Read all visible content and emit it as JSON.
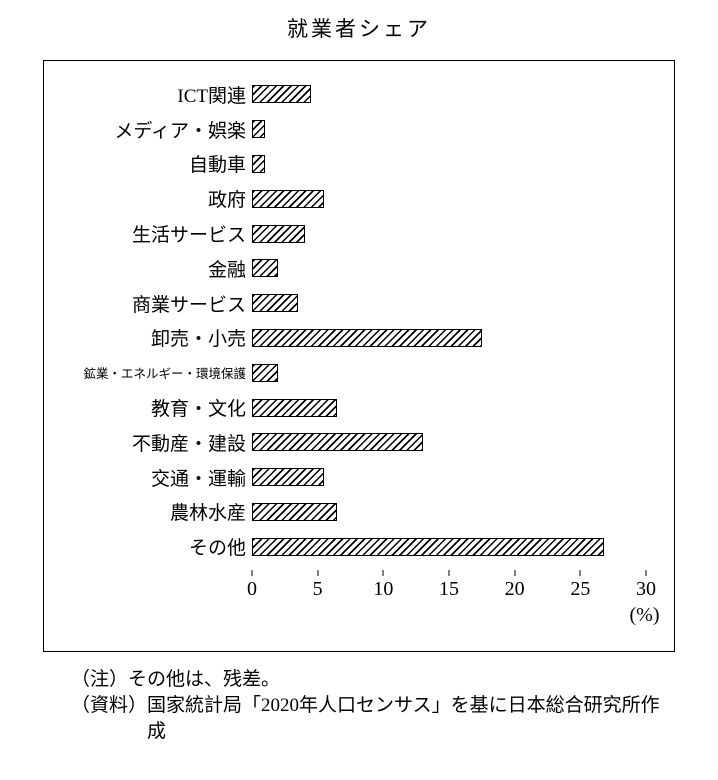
{
  "title": "就業者シェア",
  "chart_data": {
    "type": "bar",
    "orientation": "horizontal",
    "title": "就業者シェア",
    "categories": [
      "ICT関連",
      "メディア・娯楽",
      "自動車",
      "政府",
      "生活サービス",
      "金融",
      "商業サービス",
      "卸売・小売",
      "鉱業・エネルギー・環境保護",
      "教育・文化",
      "不動産・建設",
      "交通・運輸",
      "農林水産",
      "その他"
    ],
    "values": [
      4.5,
      1.0,
      1.0,
      5.5,
      4.0,
      2.0,
      3.5,
      17.5,
      2.0,
      6.5,
      13.0,
      5.5,
      6.5,
      26.8
    ],
    "xlim": [
      0,
      30
    ],
    "x_ticks": [
      0,
      5,
      10,
      15,
      20,
      25,
      30
    ],
    "x_unit_label": "(%)",
    "hatch": "diagonal",
    "grid": false,
    "legend": "none"
  },
  "notes": {
    "note1_label": "（注）",
    "note1_text": "その他は、残差。",
    "note2_label": "（資料）",
    "note2_text": "国家統計局「2020年人口センサス」を基に日本総合研究所作成"
  }
}
